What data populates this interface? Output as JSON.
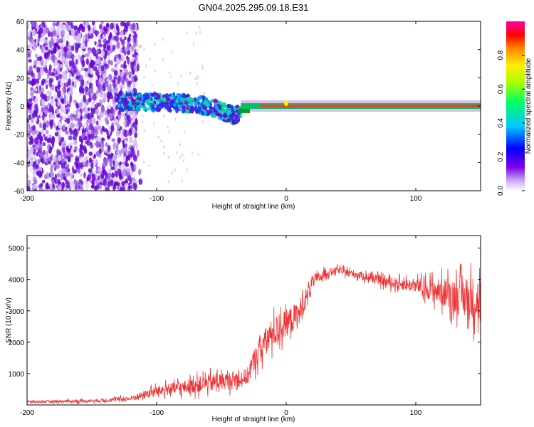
{
  "title": "GN04.2025.295.09.18.E31",
  "chart_data": [
    {
      "type": "heatmap",
      "name": "spectrogram",
      "xlabel": "Height of straight line (km)",
      "ylabel": "Frequency (Hz)",
      "xlim": [
        -200,
        150
      ],
      "ylim": [
        -60,
        60
      ],
      "xticks": [
        -200,
        -100,
        0,
        100
      ],
      "yticks": [
        -60,
        -40,
        -20,
        0,
        20,
        40,
        60
      ],
      "xtick_labels": [
        "-200",
        "-100",
        "0",
        "100"
      ],
      "ytick_labels": [
        "-60",
        "-40",
        "-20",
        "0",
        "20",
        "40",
        "60"
      ],
      "colorbar": {
        "label": "Normalized spectral amplitude",
        "range": [
          0,
          1
        ],
        "ticks": [
          0.0,
          0.2,
          0.4,
          0.6,
          0.8
        ],
        "tick_labels": [
          "0.0",
          "0.2",
          "0.4",
          "0.6",
          "0.8"
        ]
      },
      "features": {
        "noise_region_x": [
          -200,
          -115
        ],
        "drift_track": {
          "x": [
            -130,
            -100,
            -80,
            -60,
            -40,
            -35
          ],
          "freq": [
            3,
            3,
            2,
            0,
            -7,
            -3
          ]
        },
        "steady_line": {
          "x_start": -35,
          "x_end": 150,
          "freq": 0
        }
      }
    },
    {
      "type": "line",
      "name": "snr",
      "xlabel": "Height of straight line (km)",
      "ylabel": "SNR (10 * v/v)",
      "xlim": [
        -200,
        150
      ],
      "ylim": [
        0,
        5400
      ],
      "xticks": [
        -200,
        -100,
        0,
        100
      ],
      "yticks": [
        1000,
        2000,
        3000,
        4000,
        5000
      ],
      "xtick_labels": [
        "-200",
        "-100",
        "0",
        "100"
      ],
      "ytick_labels": [
        "1000",
        "2000",
        "3000",
        "4000",
        "5000"
      ],
      "color": "#ee3333",
      "series_profile": {
        "x": [
          -200,
          -150,
          -120,
          -100,
          -80,
          -60,
          -40,
          -30,
          -25,
          -20,
          -10,
          0,
          10,
          20,
          30,
          40,
          60,
          80,
          100,
          120,
          150
        ],
        "mean": [
          100,
          130,
          200,
          450,
          550,
          700,
          800,
          900,
          1400,
          1800,
          2300,
          2600,
          2900,
          3900,
          4200,
          4300,
          4100,
          3900,
          3800,
          3600,
          3300
        ],
        "spread": [
          80,
          90,
          150,
          300,
          400,
          500,
          500,
          500,
          700,
          800,
          900,
          800,
          800,
          400,
          250,
          200,
          250,
          300,
          400,
          800,
          1500
        ]
      }
    }
  ]
}
